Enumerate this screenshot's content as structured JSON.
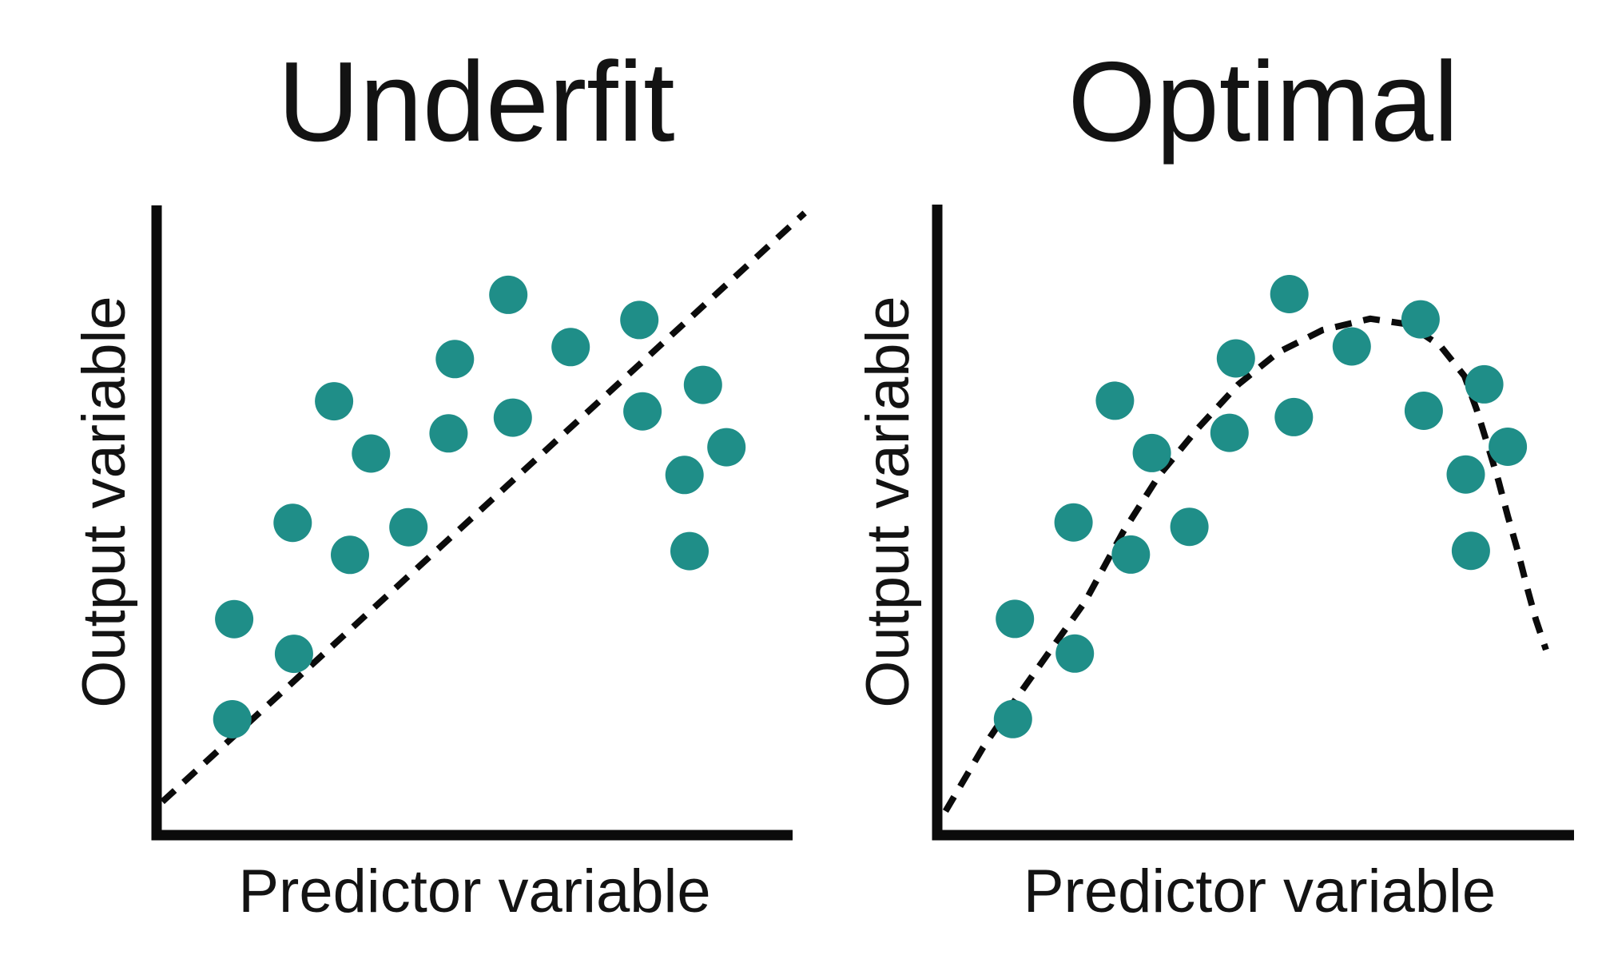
{
  "style": {
    "background": "#ffffff",
    "dot_color": "#1f8e88",
    "axis_color": "#0b0b0b",
    "trend_color": "#0b0b0b",
    "text_color": "#131313"
  },
  "chart_data": [
    {
      "type": "scatter",
      "title": "Underfit",
      "xlabel": "Predictor variable",
      "ylabel": "Output variable",
      "ticks": "none",
      "axis_range_normalized": {
        "x": [
          0,
          1
        ],
        "y": [
          0,
          1
        ]
      },
      "points": [
        [
          0.553,
          0.858
        ],
        [
          0.759,
          0.818
        ],
        [
          0.651,
          0.775
        ],
        [
          0.469,
          0.756
        ],
        [
          0.859,
          0.715
        ],
        [
          0.279,
          0.689
        ],
        [
          0.764,
          0.673
        ],
        [
          0.56,
          0.663
        ],
        [
          0.459,
          0.638
        ],
        [
          0.337,
          0.606
        ],
        [
          0.896,
          0.616
        ],
        [
          0.83,
          0.572
        ],
        [
          0.214,
          0.496
        ],
        [
          0.396,
          0.489
        ],
        [
          0.304,
          0.445
        ],
        [
          0.838,
          0.451
        ],
        [
          0.122,
          0.343
        ],
        [
          0.216,
          0.288
        ],
        [
          0.119,
          0.184
        ]
      ],
      "trend_line": {
        "shape": "straight",
        "style": "dashed",
        "path": [
          [
            0.009,
            0.053
          ],
          [
            1.019,
            0.988
          ]
        ]
      }
    },
    {
      "type": "scatter",
      "title": "Optimal",
      "xlabel": "Predictor variable",
      "ylabel": "Output variable",
      "ticks": "none",
      "axis_range_normalized": {
        "x": [
          0,
          1
        ],
        "y": [
          0,
          1
        ]
      },
      "points": [
        [
          0.553,
          0.858
        ],
        [
          0.759,
          0.818
        ],
        [
          0.651,
          0.775
        ],
        [
          0.469,
          0.756
        ],
        [
          0.859,
          0.715
        ],
        [
          0.279,
          0.689
        ],
        [
          0.764,
          0.673
        ],
        [
          0.56,
          0.663
        ],
        [
          0.459,
          0.638
        ],
        [
          0.337,
          0.606
        ],
        [
          0.896,
          0.616
        ],
        [
          0.83,
          0.572
        ],
        [
          0.214,
          0.496
        ],
        [
          0.396,
          0.489
        ],
        [
          0.304,
          0.445
        ],
        [
          0.838,
          0.451
        ],
        [
          0.122,
          0.343
        ],
        [
          0.216,
          0.288
        ],
        [
          0.119,
          0.184
        ]
      ],
      "trend_line": {
        "shape": "concave-arc",
        "style": "dashed",
        "path": [
          [
            0.013,
            0.038
          ],
          [
            0.072,
            0.139
          ],
          [
            0.125,
            0.218
          ],
          [
            0.179,
            0.295
          ],
          [
            0.232,
            0.37
          ],
          [
            0.292,
            0.481
          ],
          [
            0.348,
            0.57
          ],
          [
            0.41,
            0.646
          ],
          [
            0.473,
            0.715
          ],
          [
            0.536,
            0.766
          ],
          [
            0.605,
            0.801
          ],
          [
            0.68,
            0.819
          ],
          [
            0.74,
            0.81
          ],
          [
            0.79,
            0.776
          ],
          [
            0.828,
            0.728
          ],
          [
            0.847,
            0.675
          ],
          [
            0.864,
            0.62
          ],
          [
            0.881,
            0.563
          ],
          [
            0.896,
            0.506
          ],
          [
            0.912,
            0.449
          ],
          [
            0.927,
            0.39
          ],
          [
            0.94,
            0.342
          ],
          [
            0.956,
            0.294
          ]
        ]
      }
    }
  ]
}
